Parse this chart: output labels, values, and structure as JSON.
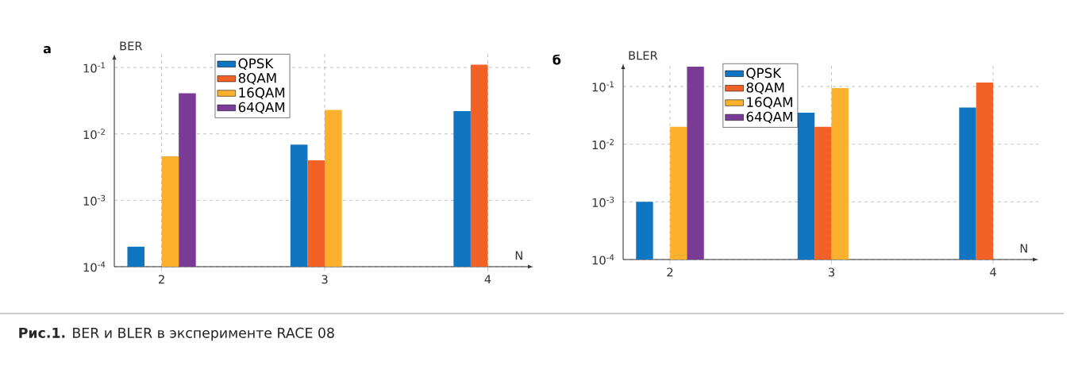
{
  "chart_data": [
    {
      "type": "bar",
      "title": "а",
      "xlabel": "N",
      "ylabel": "BER",
      "log": "y",
      "grid": true,
      "legend": "top left",
      "categories": [
        "2",
        "3",
        "4"
      ],
      "series": [
        {
          "name": "QPSK",
          "color": "#1075c0",
          "values": [
            0.0002,
            0.0069,
            0.022
          ]
        },
        {
          "name": "8QAM",
          "color": "#f26125",
          "values": [
            null,
            0.004,
            0.11
          ]
        },
        {
          "name": "16QAM",
          "color": "#fbb12e",
          "values": [
            0.0046,
            0.023,
            null
          ]
        },
        {
          "name": "64QAM",
          "color": "#7a3b97",
          "values": [
            0.041,
            null,
            null
          ]
        }
      ],
      "ylim": [
        0.0001,
        0.16
      ],
      "yticks": [
        {
          "value": 0.0001,
          "label": "10$^{-4}$"
        },
        {
          "value": 0.001,
          "label": "10$^{-3}$"
        },
        {
          "value": 0.01,
          "label": "10$^{-2}$"
        },
        {
          "value": 0.1,
          "label": "10$^{-1}$"
        }
      ],
      "annotations": [
        "**Рис.1.** BER и BLER в эксперименте RACE 08"
      ]
    },
    {
      "type": "bar",
      "title": "б",
      "xlabel": "N",
      "ylabel": "BLER",
      "log": "y",
      "grid": true,
      "legend": "top left",
      "categories": [
        "2",
        "3",
        "4"
      ],
      "series": [
        {
          "name": "QPSK",
          "color": "#1075c0",
          "values": [
            0.001,
            0.035,
            0.043
          ]
        },
        {
          "name": "8QAM",
          "color": "#f26125",
          "values": [
            null,
            0.02,
            0.117
          ]
        },
        {
          "name": "16QAM",
          "color": "#fbb12e",
          "values": [
            0.02,
            0.094,
            null
          ]
        },
        {
          "name": "64QAM",
          "color": "#7a3b97",
          "values": [
            0.22,
            null,
            null
          ]
        }
      ],
      "ylim": [
        0.0001,
        0.25
      ],
      "yticks": [
        {
          "value": 0.0001,
          "label": "10$^{-4}$"
        },
        {
          "value": 0.001,
          "label": "10$^{-3}$"
        },
        {
          "value": 0.01,
          "label": "10$^{-2}$"
        },
        {
          "value": 0.1,
          "label": "10$^{-1}$"
        }
      ]
    }
  ]
}
